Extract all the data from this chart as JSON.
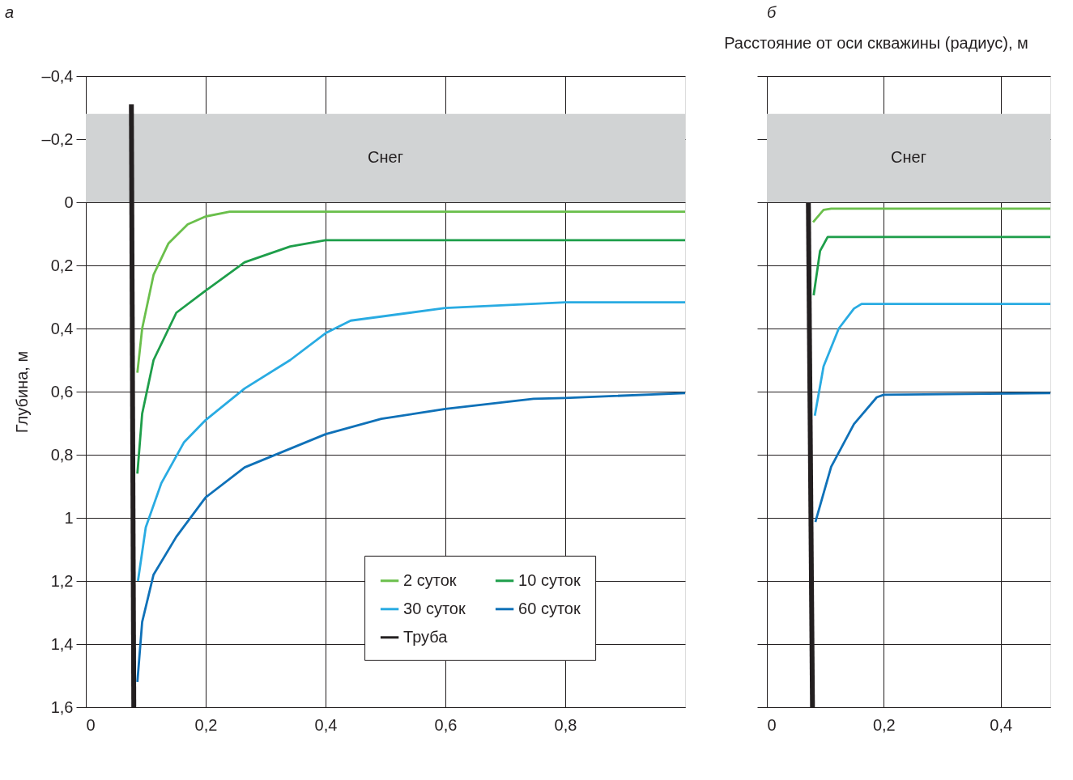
{
  "chart_data": [
    {
      "type": "line",
      "title": "а",
      "ylabel": "Глубина, м",
      "xlim": [
        0,
        1
      ],
      "ylim": [
        1.6,
        -0.4
      ],
      "xticks": [
        0,
        {
          "value": 0.2,
          "label": "0,2"
        },
        {
          "value": 0.4,
          "label": "0,4"
        },
        {
          "value": 0.6,
          "label": "0,6"
        },
        {
          "value": 0.8,
          "label": "0,8"
        }
      ],
      "yticks": [
        {
          "value": -0.4,
          "label": "–0,4"
        },
        {
          "value": -0.2,
          "label": "–0,2"
        },
        0,
        {
          "value": 0.2,
          "label": "0,2"
        },
        {
          "value": 0.4,
          "label": "0,4"
        },
        {
          "value": 0.6,
          "label": "0,6"
        },
        {
          "value": 0.8,
          "label": "0,8"
        },
        1,
        {
          "value": 1.2,
          "label": "1,2"
        },
        {
          "value": 1.4,
          "label": "1,4"
        },
        {
          "value": 1.6,
          "label": "1,6"
        }
      ],
      "grid": true,
      "legend": "bottom right",
      "bands": [
        {
          "axis": "y",
          "from": -0.28,
          "to": 0,
          "label": "Снег",
          "color": "#d1d3d4"
        }
      ],
      "series": [
        {
          "name": "2 суток",
          "color": "#6abf4b",
          "x": [
            0.086,
            0.094,
            0.113,
            0.138,
            0.17,
            0.2,
            0.24,
            1.0
          ],
          "values": [
            0.54,
            0.4,
            0.23,
            0.13,
            0.07,
            0.045,
            0.03,
            0.03
          ]
        },
        {
          "name": "10 суток",
          "color": "#1e9e4a",
          "x": [
            0.086,
            0.094,
            0.113,
            0.151,
            0.2,
            0.265,
            0.341,
            0.4,
            1.0
          ],
          "values": [
            0.86,
            0.67,
            0.5,
            0.35,
            0.28,
            0.19,
            0.14,
            0.12,
            0.12
          ]
        },
        {
          "name": "30 суток",
          "color": "#29abe2",
          "x": [
            0.087,
            0.1,
            0.126,
            0.164,
            0.2,
            0.265,
            0.341,
            0.4,
            0.442,
            0.6,
            0.8,
            1.0
          ],
          "values": [
            1.2,
            1.03,
            0.89,
            0.76,
            0.69,
            0.59,
            0.5,
            0.415,
            0.375,
            0.335,
            0.317,
            0.317
          ]
        },
        {
          "name": "60 суток",
          "color": "#0f71b8",
          "x": [
            0.086,
            0.094,
            0.113,
            0.151,
            0.2,
            0.265,
            0.4,
            0.493,
            0.6,
            0.747,
            0.8,
            1.0
          ],
          "values": [
            1.52,
            1.33,
            1.18,
            1.06,
            0.935,
            0.84,
            0.735,
            0.686,
            0.655,
            0.623,
            0.62,
            0.605
          ]
        },
        {
          "name": "Труба",
          "color": "#231f20",
          "x": [
            0.076,
            0.08
          ],
          "values": [
            -0.31,
            1.6
          ]
        }
      ]
    },
    {
      "type": "line",
      "title": "б",
      "xlabel": "Расстояние от оси скважины (радиус), м",
      "xlim": [
        0,
        0.485
      ],
      "ylim": [
        1.6,
        -0.4
      ],
      "xticks": [
        0,
        {
          "value": 0.2,
          "label": "0,2"
        },
        {
          "value": 0.4,
          "label": "0,4"
        }
      ],
      "yticks": [
        {
          "value": -0.4,
          "label": null
        },
        {
          "value": -0.2,
          "label": null
        },
        {
          "value": 0,
          "label": null
        },
        {
          "value": 0.2,
          "label": null
        },
        {
          "value": 0.4,
          "label": null
        },
        {
          "value": 0.6,
          "label": null
        },
        {
          "value": 0.8,
          "label": null
        },
        {
          "value": 1,
          "label": null
        },
        {
          "value": 1.2,
          "label": null
        },
        {
          "value": 1.4,
          "label": null
        },
        {
          "value": 1.6,
          "label": null
        }
      ],
      "grid": true,
      "tick_labels": "x",
      "bands": [
        {
          "axis": "y",
          "from": -0.28,
          "to": 0,
          "label": "Снег",
          "color": "#d1d3d4"
        }
      ],
      "series": [
        {
          "color": "#6abf4b",
          "x": [
            0.079,
            0.097,
            0.11,
            0.485
          ],
          "values": [
            0.063,
            0.024,
            0.02,
            0.02
          ]
        },
        {
          "color": "#1e9e4a",
          "x": [
            0.08,
            0.091,
            0.104,
            0.485
          ],
          "values": [
            0.295,
            0.154,
            0.11,
            0.11
          ]
        },
        {
          "color": "#29abe2",
          "x": [
            0.082,
            0.097,
            0.123,
            0.149,
            0.162,
            0.485
          ],
          "values": [
            0.676,
            0.52,
            0.4,
            0.337,
            0.322,
            0.322
          ]
        },
        {
          "color": "#0f71b8",
          "x": [
            0.083,
            0.11,
            0.149,
            0.188,
            0.2,
            0.485
          ],
          "values": [
            1.013,
            0.838,
            0.703,
            0.618,
            0.61,
            0.605
          ]
        },
        {
          "color": "#231f20",
          "x": [
            0.071,
            0.078
          ],
          "values": [
            0,
            1.6
          ]
        }
      ]
    }
  ]
}
